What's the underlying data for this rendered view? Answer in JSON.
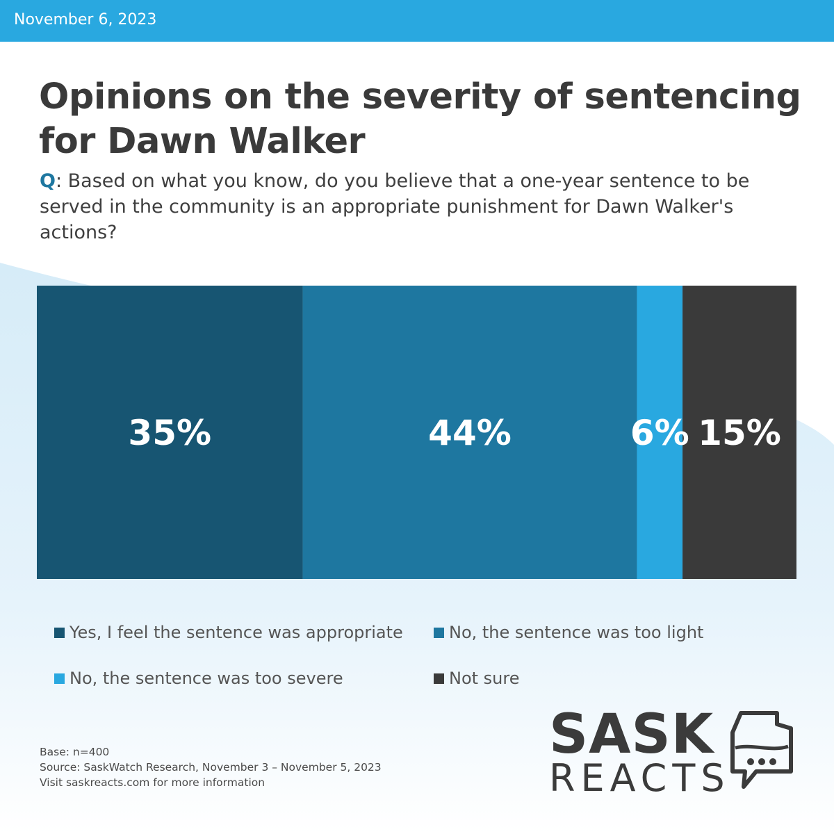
{
  "header": {
    "date": "November 6, 2023"
  },
  "title": "Opinions on the severity of sentencing for Dawn Walker",
  "question": {
    "prefix": "Q",
    "text": ": Based on what you know, do you believe that a one-year sentence to be served in the community is an appropriate punishment for Dawn Walker's actions?"
  },
  "chart_data": {
    "type": "bar",
    "orientation": "stacked-horizontal-100",
    "series": [
      {
        "name": "Yes, I feel the sentence was appropriate",
        "value": 35,
        "label": "35%",
        "color": "#175572"
      },
      {
        "name": "No, the sentence was too light",
        "value": 44,
        "label": "44%",
        "color": "#1e77a0"
      },
      {
        "name": "No, the sentence was too severe",
        "value": 6,
        "label": "6%",
        "color": "#29a8e0"
      },
      {
        "name": "Not sure",
        "value": 15,
        "label": "15%",
        "color": "#3a3a3a"
      }
    ],
    "xlim": [
      0,
      100
    ],
    "grid": false,
    "legend_position": "bottom"
  },
  "footnote": {
    "base": "Base: n=400",
    "source": "Source: SaskWatch Research, November 3 – November 5, 2023",
    "visit": "Visit saskreacts.com for more information"
  },
  "logo": {
    "line1": "SASK",
    "line2": "REACTS",
    "icon": "saskatchewan-speech-bubble-icon"
  },
  "colors": {
    "accent": "#29a8e0",
    "text": "#3a3a3a"
  }
}
